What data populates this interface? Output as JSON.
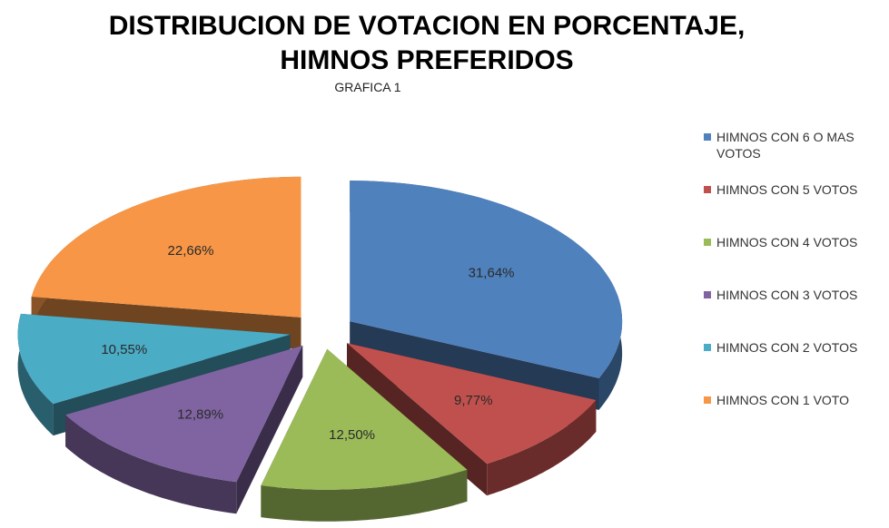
{
  "chart_data": {
    "type": "pie",
    "title": "DISTRIBUCION DE VOTACION EN PORCENTAJE, HIMNOS PREFERIDOS",
    "subtitle": "GRAFICA 1",
    "categories": [
      "HIMNOS CON 6 O MAS VOTOS",
      "HIMNOS CON 5 VOTOS",
      "HIMNOS CON 4 VOTOS",
      "HIMNOS CON 3 VOTOS",
      "HIMNOS CON 2 VOTOS",
      "HIMNOS CON 1 VOTO"
    ],
    "values": [
      31.64,
      9.77,
      12.5,
      12.89,
      10.55,
      22.66
    ],
    "value_labels": [
      "31,64%",
      "9,77%",
      "12,50%",
      "12,89%",
      "10,55%",
      "22,66%"
    ],
    "colors": [
      "#4f81bd",
      "#c0504d",
      "#9bbb59",
      "#8064a2",
      "#4bacc6",
      "#f79646"
    ],
    "legend": "right"
  }
}
